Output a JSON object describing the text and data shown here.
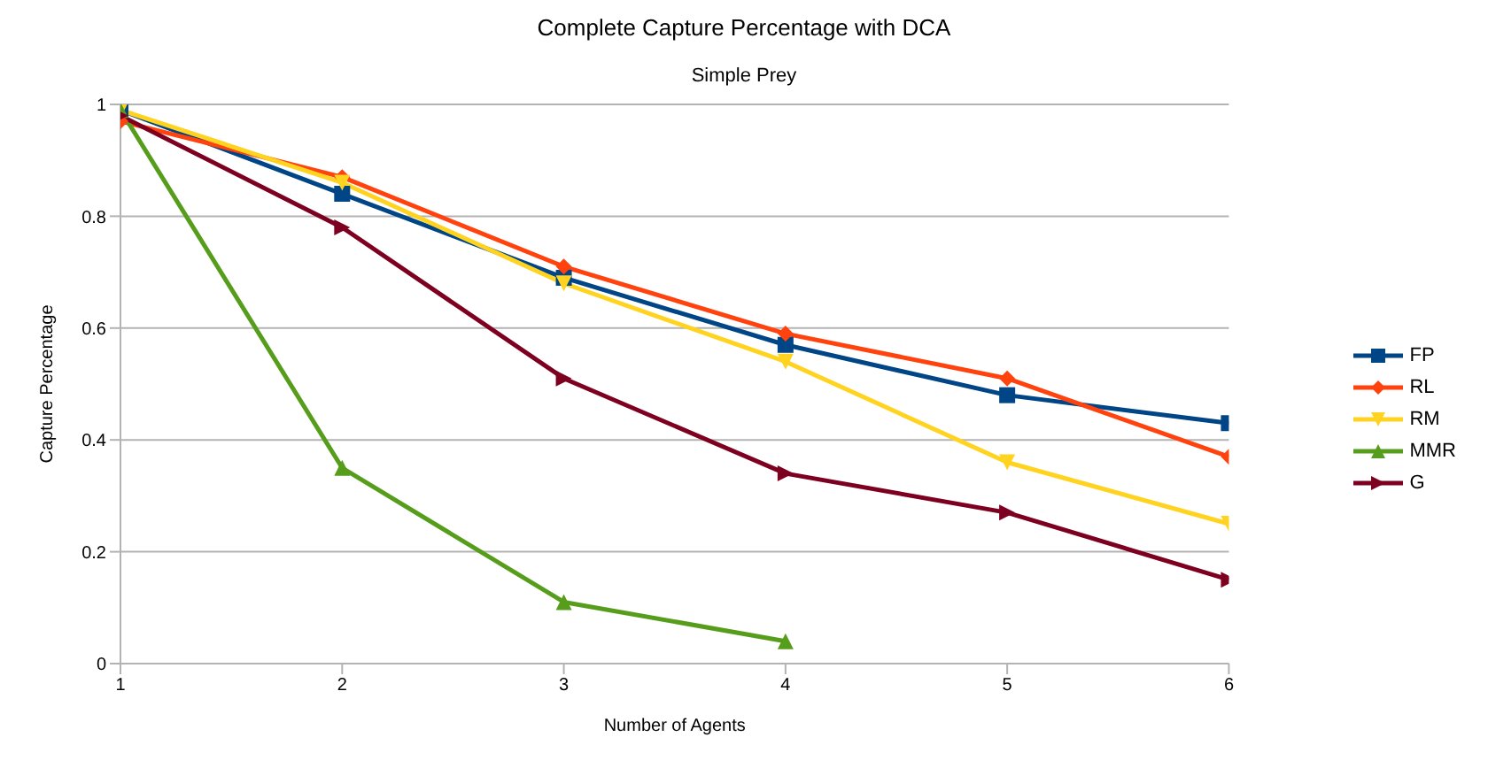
{
  "chart_data": {
    "type": "line",
    "title": "Complete Capture Percentage with DCA",
    "subtitle": "Simple Prey",
    "xlabel": "Number of Agents",
    "ylabel": "Capture Percentage",
    "x": [
      1,
      2,
      3,
      4,
      5,
      6
    ],
    "xlim": [
      1,
      6
    ],
    "xticks": [
      1,
      2,
      3,
      4,
      5,
      6
    ],
    "ylim": [
      0,
      1
    ],
    "yticks": [
      0,
      0.2,
      0.4,
      0.6,
      0.8,
      1
    ],
    "grid": "y",
    "legend": "right",
    "series": [
      {
        "name": "FP",
        "color": "#004586",
        "marker": "square",
        "values": [
          0.99,
          0.84,
          0.69,
          0.57,
          0.48,
          0.43
        ]
      },
      {
        "name": "RL",
        "color": "#ff420e",
        "marker": "diamond",
        "values": [
          0.97,
          0.87,
          0.71,
          0.59,
          0.51,
          0.37
        ]
      },
      {
        "name": "RM",
        "color": "#ffd320",
        "marker": "triangle-down",
        "values": [
          0.99,
          0.86,
          0.68,
          0.54,
          0.36,
          0.25
        ]
      },
      {
        "name": "MMR",
        "color": "#579d1c",
        "marker": "triangle",
        "values": [
          0.99,
          0.35,
          0.11,
          0.04,
          null,
          null
        ]
      },
      {
        "name": "G",
        "color": "#7e0021",
        "marker": "triangle-right",
        "values": [
          0.98,
          0.78,
          0.51,
          0.34,
          0.27,
          0.15
        ]
      }
    ]
  }
}
